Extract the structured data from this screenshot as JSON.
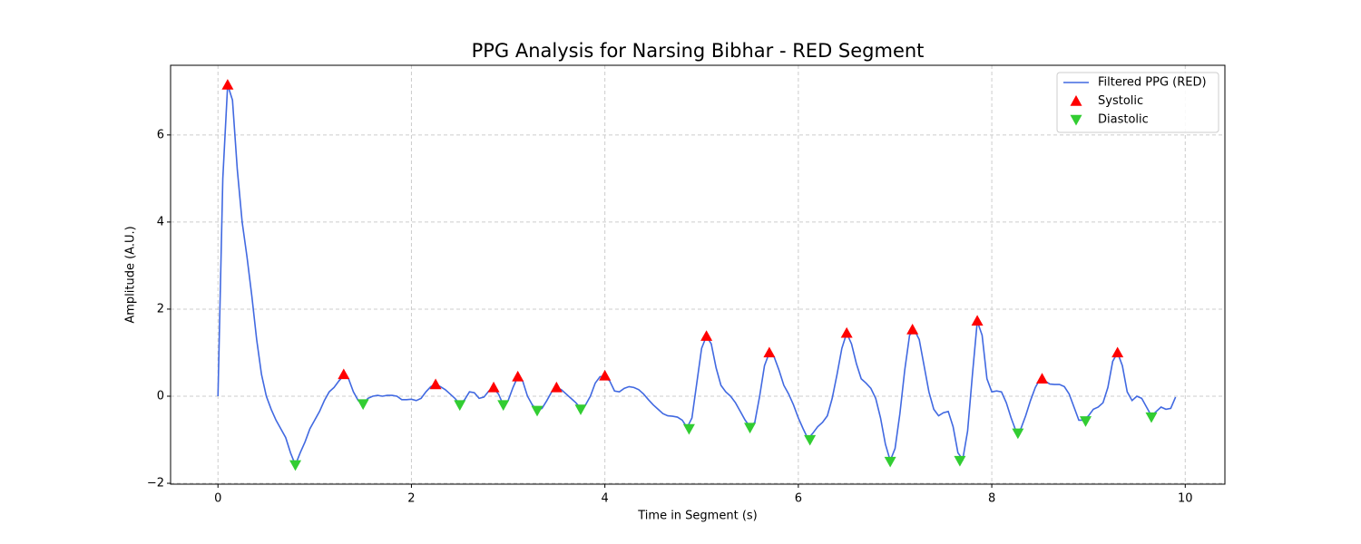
{
  "chart_data": {
    "type": "line",
    "title": "PPG Analysis for Narsing Bibhar - RED Segment",
    "x_label": "Time in Segment (s)",
    "y_label": "Amplitude (A.U.)",
    "xlim": [
      -0.49,
      10.41
    ],
    "ylim": [
      -2.02,
      7.6
    ],
    "xticks": [
      0,
      2,
      4,
      6,
      8,
      10
    ],
    "yticks": [
      {
        "value": -2,
        "label": "−2"
      },
      0,
      2,
      4,
      6
    ],
    "grid": true,
    "legend": "upper right",
    "series": [
      {
        "name": "Filtered PPG (RED)",
        "type": "line",
        "color": "#4169e1",
        "x": [
          0,
          0.05,
          0.1,
          0.15,
          0.2,
          0.25,
          0.3,
          0.35,
          0.4,
          0.45,
          0.5,
          0.55,
          0.6,
          0.65,
          0.7,
          0.75,
          0.8,
          0.85,
          0.9,
          0.95,
          1.0,
          1.05,
          1.1,
          1.15,
          1.2,
          1.25,
          1.3,
          1.35,
          1.4,
          1.45,
          1.5,
          1.55,
          1.6,
          1.65,
          1.7,
          1.75,
          1.8,
          1.85,
          1.9,
          1.95,
          2.0,
          2.05,
          2.1,
          2.15,
          2.2,
          2.25,
          2.3,
          2.35,
          2.4,
          2.45,
          2.5,
          2.55,
          2.6,
          2.65,
          2.7,
          2.75,
          2.8,
          2.85,
          2.9,
          2.95,
          3.0,
          3.05,
          3.1,
          3.15,
          3.2,
          3.25,
          3.3,
          3.35,
          3.4,
          3.45,
          3.5,
          3.55,
          3.6,
          3.65,
          3.7,
          3.75,
          3.8,
          3.85,
          3.9,
          3.95,
          4.0,
          4.05,
          4.1,
          4.15,
          4.2,
          4.25,
          4.3,
          4.35,
          4.4,
          4.45,
          4.5,
          4.55,
          4.6,
          4.65,
          4.7,
          4.75,
          4.8,
          4.85,
          4.9,
          4.95,
          5.0,
          5.05,
          5.1,
          5.15,
          5.2,
          5.25,
          5.3,
          5.35,
          5.4,
          5.45,
          5.5,
          5.55,
          5.6,
          5.65,
          5.7,
          5.75,
          5.8,
          5.85,
          5.9,
          5.95,
          6.0,
          6.05,
          6.1,
          6.15,
          6.2,
          6.25,
          6.3,
          6.35,
          6.4,
          6.45,
          6.5,
          6.55,
          6.6,
          6.65,
          6.7,
          6.75,
          6.8,
          6.85,
          6.9,
          6.95,
          7.0,
          7.05,
          7.1,
          7.15,
          7.2,
          7.25,
          7.3,
          7.35,
          7.4,
          7.45,
          7.5,
          7.55,
          7.6,
          7.65,
          7.7,
          7.75,
          7.8,
          7.85,
          7.9,
          7.95,
          8.0,
          8.05,
          8.1,
          8.15,
          8.2,
          8.25,
          8.3,
          8.35,
          8.4,
          8.45,
          8.5,
          8.55,
          8.6,
          8.65,
          8.7,
          8.75,
          8.8,
          8.85,
          8.9,
          8.95,
          9.0,
          9.05,
          9.1,
          9.15,
          9.2,
          9.25,
          9.3,
          9.35,
          9.4,
          9.45,
          9.5,
          9.55,
          9.6,
          9.65,
          9.7,
          9.75,
          9.8,
          9.85,
          9.9
        ],
        "values": [
          0,
          5.0,
          7.15,
          6.8,
          5.2,
          4.0,
          3.2,
          2.3,
          1.3,
          0.5,
          0.0,
          -0.3,
          -0.55,
          -0.75,
          -0.95,
          -1.3,
          -1.58,
          -1.3,
          -1.05,
          -0.75,
          -0.55,
          -0.35,
          -0.1,
          0.1,
          0.2,
          0.35,
          0.48,
          0.4,
          0.1,
          -0.1,
          -0.18,
          -0.05,
          0.0,
          0.02,
          0.0,
          0.02,
          0.02,
          0.0,
          -0.08,
          -0.08,
          -0.07,
          -0.1,
          -0.05,
          0.1,
          0.22,
          0.27,
          0.22,
          0.15,
          0.05,
          -0.05,
          -0.18,
          -0.08,
          0.1,
          0.08,
          -0.05,
          -0.02,
          0.12,
          0.18,
          0.05,
          -0.2,
          -0.1,
          0.2,
          0.45,
          0.35,
          0.0,
          -0.2,
          -0.32,
          -0.28,
          -0.1,
          0.1,
          0.2,
          0.15,
          0.05,
          -0.05,
          -0.15,
          -0.28,
          -0.2,
          0.0,
          0.3,
          0.45,
          0.45,
          0.35,
          0.12,
          0.1,
          0.18,
          0.22,
          0.2,
          0.15,
          0.05,
          -0.08,
          -0.2,
          -0.3,
          -0.4,
          -0.45,
          -0.46,
          -0.48,
          -0.55,
          -0.72,
          -0.5,
          0.3,
          1.1,
          1.38,
          1.2,
          0.65,
          0.25,
          0.1,
          0.0,
          -0.15,
          -0.35,
          -0.55,
          -0.7,
          -0.6,
          0.0,
          0.7,
          1.0,
          0.9,
          0.6,
          0.25,
          0.05,
          -0.2,
          -0.5,
          -0.75,
          -0.98,
          -0.85,
          -0.7,
          -0.6,
          -0.45,
          -0.05,
          0.5,
          1.1,
          1.45,
          1.2,
          0.75,
          0.4,
          0.3,
          0.18,
          -0.05,
          -0.5,
          -1.1,
          -1.48,
          -1.2,
          -0.4,
          0.6,
          1.4,
          1.52,
          1.3,
          0.7,
          0.1,
          -0.3,
          -0.45,
          -0.38,
          -0.35,
          -0.7,
          -1.3,
          -1.45,
          -0.8,
          0.5,
          1.72,
          1.4,
          0.4,
          0.1,
          0.12,
          0.1,
          -0.15,
          -0.5,
          -0.8,
          -0.75,
          -0.45,
          -0.1,
          0.2,
          0.4,
          0.35,
          0.28,
          0.27,
          0.27,
          0.22,
          0.05,
          -0.25,
          -0.55,
          -0.55,
          -0.45,
          -0.3,
          -0.25,
          -0.15,
          0.2,
          0.8,
          1.0,
          0.7,
          0.1,
          -0.1,
          0.0,
          -0.05,
          -0.25,
          -0.45,
          -0.35,
          -0.25,
          -0.3,
          -0.28,
          -0.02
        ]
      },
      {
        "name": "Systolic",
        "type": "scatter",
        "marker": "up",
        "color": "#ff0000",
        "x": [
          0.1,
          1.3,
          2.25,
          2.85,
          3.1,
          3.5,
          4.0,
          5.05,
          5.7,
          6.5,
          7.18,
          7.85,
          8.52,
          9.3
        ],
        "values": [
          7.15,
          0.5,
          0.27,
          0.2,
          0.45,
          0.2,
          0.47,
          1.38,
          1.0,
          1.45,
          1.53,
          1.73,
          0.4,
          1.0
        ]
      },
      {
        "name": "Diastolic",
        "type": "scatter",
        "marker": "down",
        "color": "#32cd32",
        "x": [
          0.8,
          1.5,
          2.5,
          2.95,
          3.3,
          3.75,
          4.87,
          5.5,
          6.12,
          6.95,
          7.67,
          8.27,
          8.97,
          9.65
        ],
        "values": [
          -1.58,
          -0.18,
          -0.2,
          -0.2,
          -0.33,
          -0.3,
          -0.75,
          -0.72,
          -1.0,
          -1.5,
          -1.48,
          -0.85,
          -0.57,
          -0.48
        ]
      }
    ]
  }
}
